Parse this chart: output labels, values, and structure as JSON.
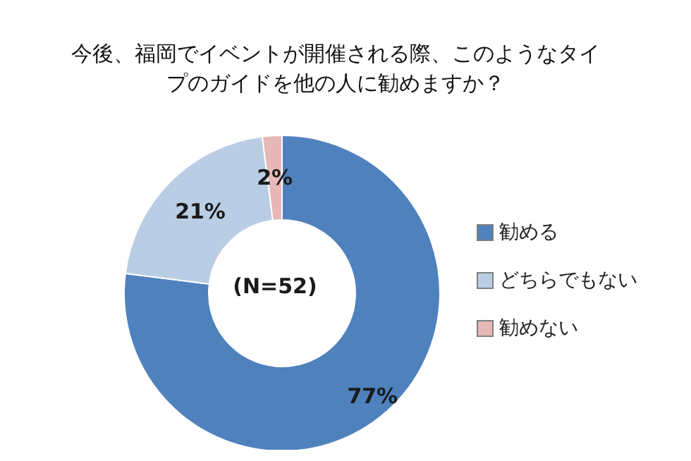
{
  "chart_data": {
    "type": "donut",
    "title": "今後、福岡でイベントが開催される際、このようなタイプのガイドを他の人に勧めますか？",
    "categories": [
      "勧める",
      "どちらでもない",
      "勧めない"
    ],
    "values": [
      77,
      21,
      2
    ],
    "colors": [
      "#4f81bd",
      "#b9cde5",
      "#e6b8b7"
    ],
    "value_labels": [
      "77%",
      "21%",
      "2%"
    ],
    "annotations": [
      "(N=52)"
    ],
    "legend": "right"
  }
}
